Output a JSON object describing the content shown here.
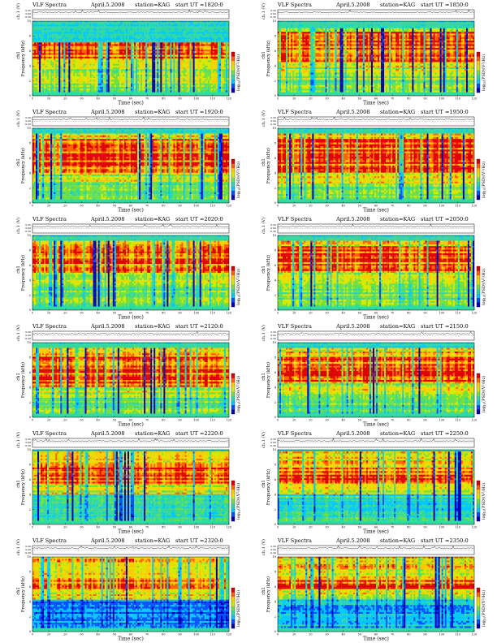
{
  "page": {
    "background": "#ffffff"
  },
  "colors": {
    "colormap": [
      "#0000b4",
      "#0050ff",
      "#00c8ff",
      "#30d8a0",
      "#70e040",
      "#d8e800",
      "#ffc800",
      "#ff6000",
      "#dd0000"
    ],
    "trace": "#000000"
  },
  "panels": [
    {
      "title": "VLF Spectra",
      "date": "April.5.2008",
      "station": "station=KAG",
      "start": "start  UT  =1820:0",
      "vlf_top": 7.2,
      "red_band": [
        5.0,
        8.8
      ],
      "lower_level": 0.45,
      "deep_dropouts": 0.3,
      "high_blue": 0.0,
      "chart_data": {
        "type": "heatmap",
        "x_range": [
          0,
          120
        ],
        "y_range": [
          0,
          10
        ],
        "xticks": [
          0,
          10,
          20,
          30,
          40,
          50,
          60,
          70,
          80,
          90,
          100,
          110,
          120
        ],
        "yticks": [
          0,
          2,
          4,
          6,
          8,
          10
        ]
      }
    },
    {
      "title": "VLF Spectra",
      "date": "April.5.2008",
      "station": "station=KAG",
      "start": "start  UT  =1850:0",
      "vlf_top": 9.0,
      "red_band": [
        4.5,
        8.5
      ],
      "lower_level": 0.45,
      "deep_dropouts": 0.3,
      "high_blue": 0.0,
      "chart_data": {
        "type": "heatmap",
        "x_range": [
          0,
          120
        ],
        "y_range": [
          0,
          10
        ],
        "xticks": [
          0,
          10,
          20,
          30,
          40,
          50,
          60,
          70,
          80,
          90,
          100,
          110,
          120
        ],
        "yticks": [
          0,
          2,
          4,
          6,
          8,
          10
        ]
      }
    },
    {
      "title": "VLF Spectra",
      "date": "April.5.2008",
      "station": "station=KAG",
      "start": "start  UT  =1920:0",
      "vlf_top": 9.2,
      "red_band": [
        4.0,
        8.5
      ],
      "lower_level": 0.42,
      "deep_dropouts": 0.3,
      "high_blue": 0.0,
      "chart_data": {
        "type": "heatmap",
        "x_range": [
          0,
          120
        ],
        "y_range": [
          0,
          10
        ],
        "xticks": [
          0,
          10,
          20,
          30,
          40,
          50,
          60,
          70,
          80,
          90,
          100,
          110,
          120
        ],
        "yticks": [
          0,
          2,
          4,
          6,
          8,
          10
        ]
      }
    },
    {
      "title": "VLF Spectra",
      "date": "April.5.2008",
      "station": "station=KAG",
      "start": "start  UT  =1950:0",
      "vlf_top": 9.2,
      "red_band": [
        4.0,
        8.5
      ],
      "lower_level": 0.42,
      "deep_dropouts": 0.35,
      "high_blue": 0.05,
      "chart_data": {
        "type": "heatmap",
        "x_range": [
          0,
          120
        ],
        "y_range": [
          0,
          10
        ],
        "xticks": [
          0,
          10,
          20,
          30,
          40,
          50,
          60,
          70,
          80,
          90,
          100,
          110,
          120
        ],
        "yticks": [
          0,
          2,
          4,
          6,
          8,
          10
        ]
      }
    },
    {
      "title": "VLF Spectra",
      "date": "April.5.2008",
      "station": "station=KAG",
      "start": "start  UT  =2020:0",
      "vlf_top": 9.2,
      "red_band": [
        5.0,
        8.5
      ],
      "lower_level": 0.4,
      "deep_dropouts": 0.3,
      "high_blue": 0.05,
      "chart_data": {
        "type": "heatmap",
        "x_range": [
          0,
          120
        ],
        "y_range": [
          0,
          10
        ],
        "xticks": [
          0,
          10,
          20,
          30,
          40,
          50,
          60,
          70,
          80,
          90,
          100,
          110,
          120
        ],
        "yticks": [
          0,
          2,
          4,
          6,
          8,
          10
        ]
      }
    },
    {
      "title": "VLF Spectra",
      "date": "April.5.2008",
      "station": "station=KAG",
      "start": "start  UT  =2050:0",
      "vlf_top": 9.2,
      "red_band": [
        5.0,
        8.5
      ],
      "lower_level": 0.4,
      "deep_dropouts": 0.3,
      "high_blue": 0.05,
      "chart_data": {
        "type": "heatmap",
        "x_range": [
          0,
          120
        ],
        "y_range": [
          0,
          10
        ],
        "xticks": [
          0,
          10,
          20,
          30,
          40,
          50,
          60,
          70,
          80,
          90,
          100,
          110,
          120
        ],
        "yticks": [
          0,
          2,
          4,
          6,
          8,
          10
        ]
      }
    },
    {
      "title": "VLF Spectra",
      "date": "April.5.2008",
      "station": "station=KAG",
      "start": "start  UT  =2120:0",
      "vlf_top": 9.3,
      "red_band": [
        4.0,
        8.0
      ],
      "lower_level": 0.38,
      "deep_dropouts": 0.35,
      "high_blue": 0.2,
      "chart_data": {
        "type": "heatmap",
        "x_range": [
          0,
          120
        ],
        "y_range": [
          0,
          10
        ],
        "xticks": [
          0,
          10,
          20,
          30,
          40,
          50,
          60,
          70,
          80,
          90,
          100,
          110,
          120
        ],
        "yticks": [
          0,
          2,
          4,
          6,
          8,
          10
        ]
      }
    },
    {
      "title": "VLF Spectra",
      "date": "April.5.2008",
      "station": "station=KAG",
      "start": "start  UT  =2150:0",
      "vlf_top": 9.3,
      "red_band": [
        4.5,
        8.0
      ],
      "lower_level": 0.38,
      "deep_dropouts": 0.3,
      "high_blue": 0.2,
      "chart_data": {
        "type": "heatmap",
        "x_range": [
          0,
          120
        ],
        "y_range": [
          0,
          10
        ],
        "xticks": [
          0,
          10,
          20,
          30,
          40,
          50,
          60,
          70,
          80,
          90,
          100,
          110,
          120
        ],
        "yticks": [
          0,
          2,
          4,
          6,
          8,
          10
        ]
      }
    },
    {
      "title": "VLF Spectra",
      "date": "April.5.2008",
      "station": "station=KAG",
      "start": "start  UT  =2220:0",
      "vlf_top": 9.8,
      "red_band": [
        5.5,
        7.5
      ],
      "lower_level": 0.3,
      "deep_dropouts": 0.3,
      "high_blue": 0.35,
      "chart_data": {
        "type": "heatmap",
        "x_range": [
          0,
          120
        ],
        "y_range": [
          0,
          10
        ],
        "xticks": [
          0,
          10,
          20,
          30,
          40,
          50,
          60,
          70,
          80,
          90,
          100,
          110,
          120
        ],
        "yticks": [
          0,
          2,
          4,
          6,
          8,
          10
        ]
      }
    },
    {
      "title": "VLF Spectra",
      "date": "April.5.2008",
      "station": "station=KAG",
      "start": "start  UT  =2250:0",
      "vlf_top": 9.8,
      "red_band": [
        5.5,
        7.5
      ],
      "lower_level": 0.3,
      "deep_dropouts": 0.3,
      "high_blue": 0.35,
      "chart_data": {
        "type": "heatmap",
        "x_range": [
          0,
          120
        ],
        "y_range": [
          0,
          10
        ],
        "xticks": [
          0,
          10,
          20,
          30,
          40,
          50,
          60,
          70,
          80,
          90,
          100,
          110,
          120
        ],
        "yticks": [
          0,
          2,
          4,
          6,
          8,
          10
        ]
      }
    },
    {
      "title": "VLF Spectra",
      "date": "April.5.2008",
      "station": "station=KAG",
      "start": "start  UT  =2320:0",
      "vlf_top": 10.0,
      "red_band": [
        5.8,
        7.0
      ],
      "lower_level": 0.12,
      "deep_dropouts": 0.4,
      "high_blue": 0.6,
      "chart_data": {
        "type": "heatmap",
        "x_range": [
          0,
          120
        ],
        "y_range": [
          0,
          10
        ],
        "xticks": [
          0,
          10,
          20,
          30,
          40,
          50,
          60,
          70,
          80,
          90,
          100,
          110,
          120
        ],
        "yticks": [
          0,
          2,
          4,
          6,
          8,
          10
        ]
      }
    },
    {
      "title": "VLF Spectra",
      "date": "April.5.2008",
      "station": "station=KAG",
      "start": "start  UT  =2350:0",
      "vlf_top": 10.0,
      "red_band": [
        5.8,
        7.0
      ],
      "lower_level": 0.18,
      "deep_dropouts": 0.4,
      "high_blue": 0.5,
      "chart_data": {
        "type": "heatmap",
        "x_range": [
          0,
          120
        ],
        "y_range": [
          0,
          10
        ],
        "xticks": [
          0,
          10,
          20,
          30,
          40,
          50,
          60,
          70,
          80,
          90,
          100,
          110,
          120
        ],
        "yticks": [
          0,
          2,
          4,
          6,
          8,
          10
        ]
      }
    }
  ],
  "axis_labels": {
    "time_x": "Time  (sec)",
    "freq_y": "Frequency  (kHz)",
    "ch_prefix": "ch1",
    "amp_y": "ch.1 (V)",
    "amp_ticks": [
      "0.30",
      "0.00",
      "-0.30"
    ],
    "colorbar_label": "log",
    "colorbar_sub": "10",
    "colorbar_unit": "(PSD)(V",
    "colorbar_unit2": "2",
    "colorbar_unit3": "/Hz)"
  }
}
